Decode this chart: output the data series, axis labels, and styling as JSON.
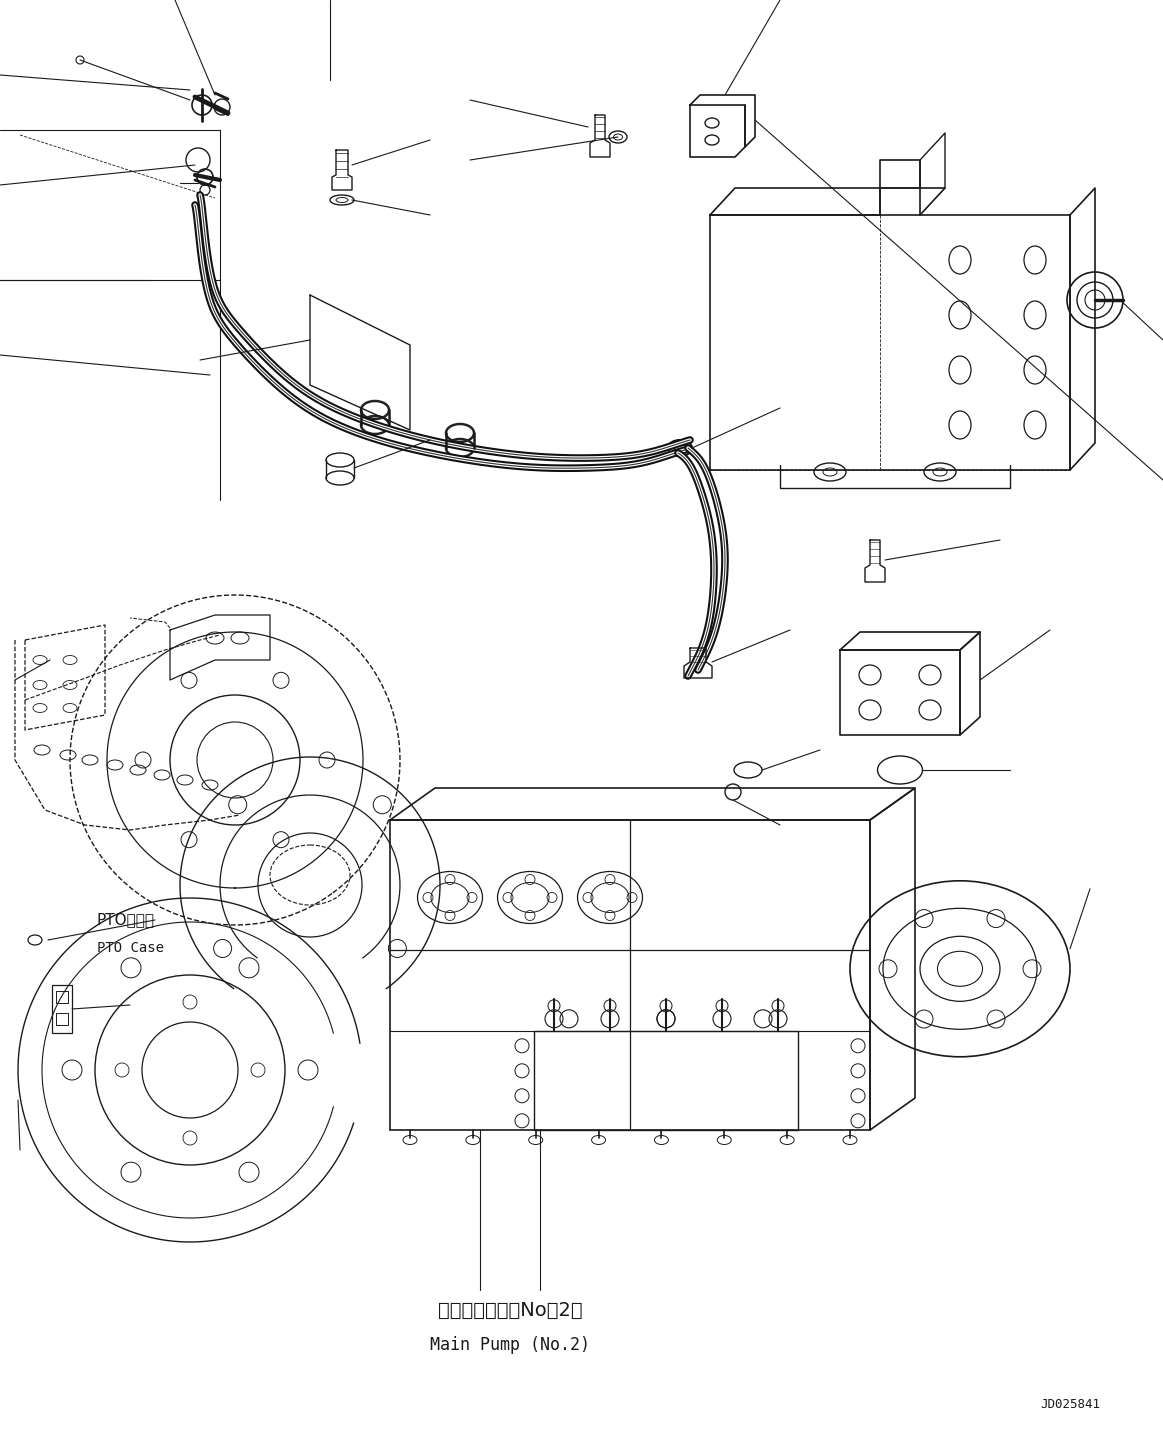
{
  "background_color": "#ffffff",
  "line_color": "#1a1a1a",
  "figure_width": 11.63,
  "figure_height": 14.38,
  "dpi": 100,
  "labels": {
    "main_pump_jp": "メインポンプ（No．2）",
    "main_pump_en": "Main Pump (No.2)",
    "pto_jp": "PTOケース",
    "pto_en": "PTO Case",
    "part_id": "JD025841"
  }
}
